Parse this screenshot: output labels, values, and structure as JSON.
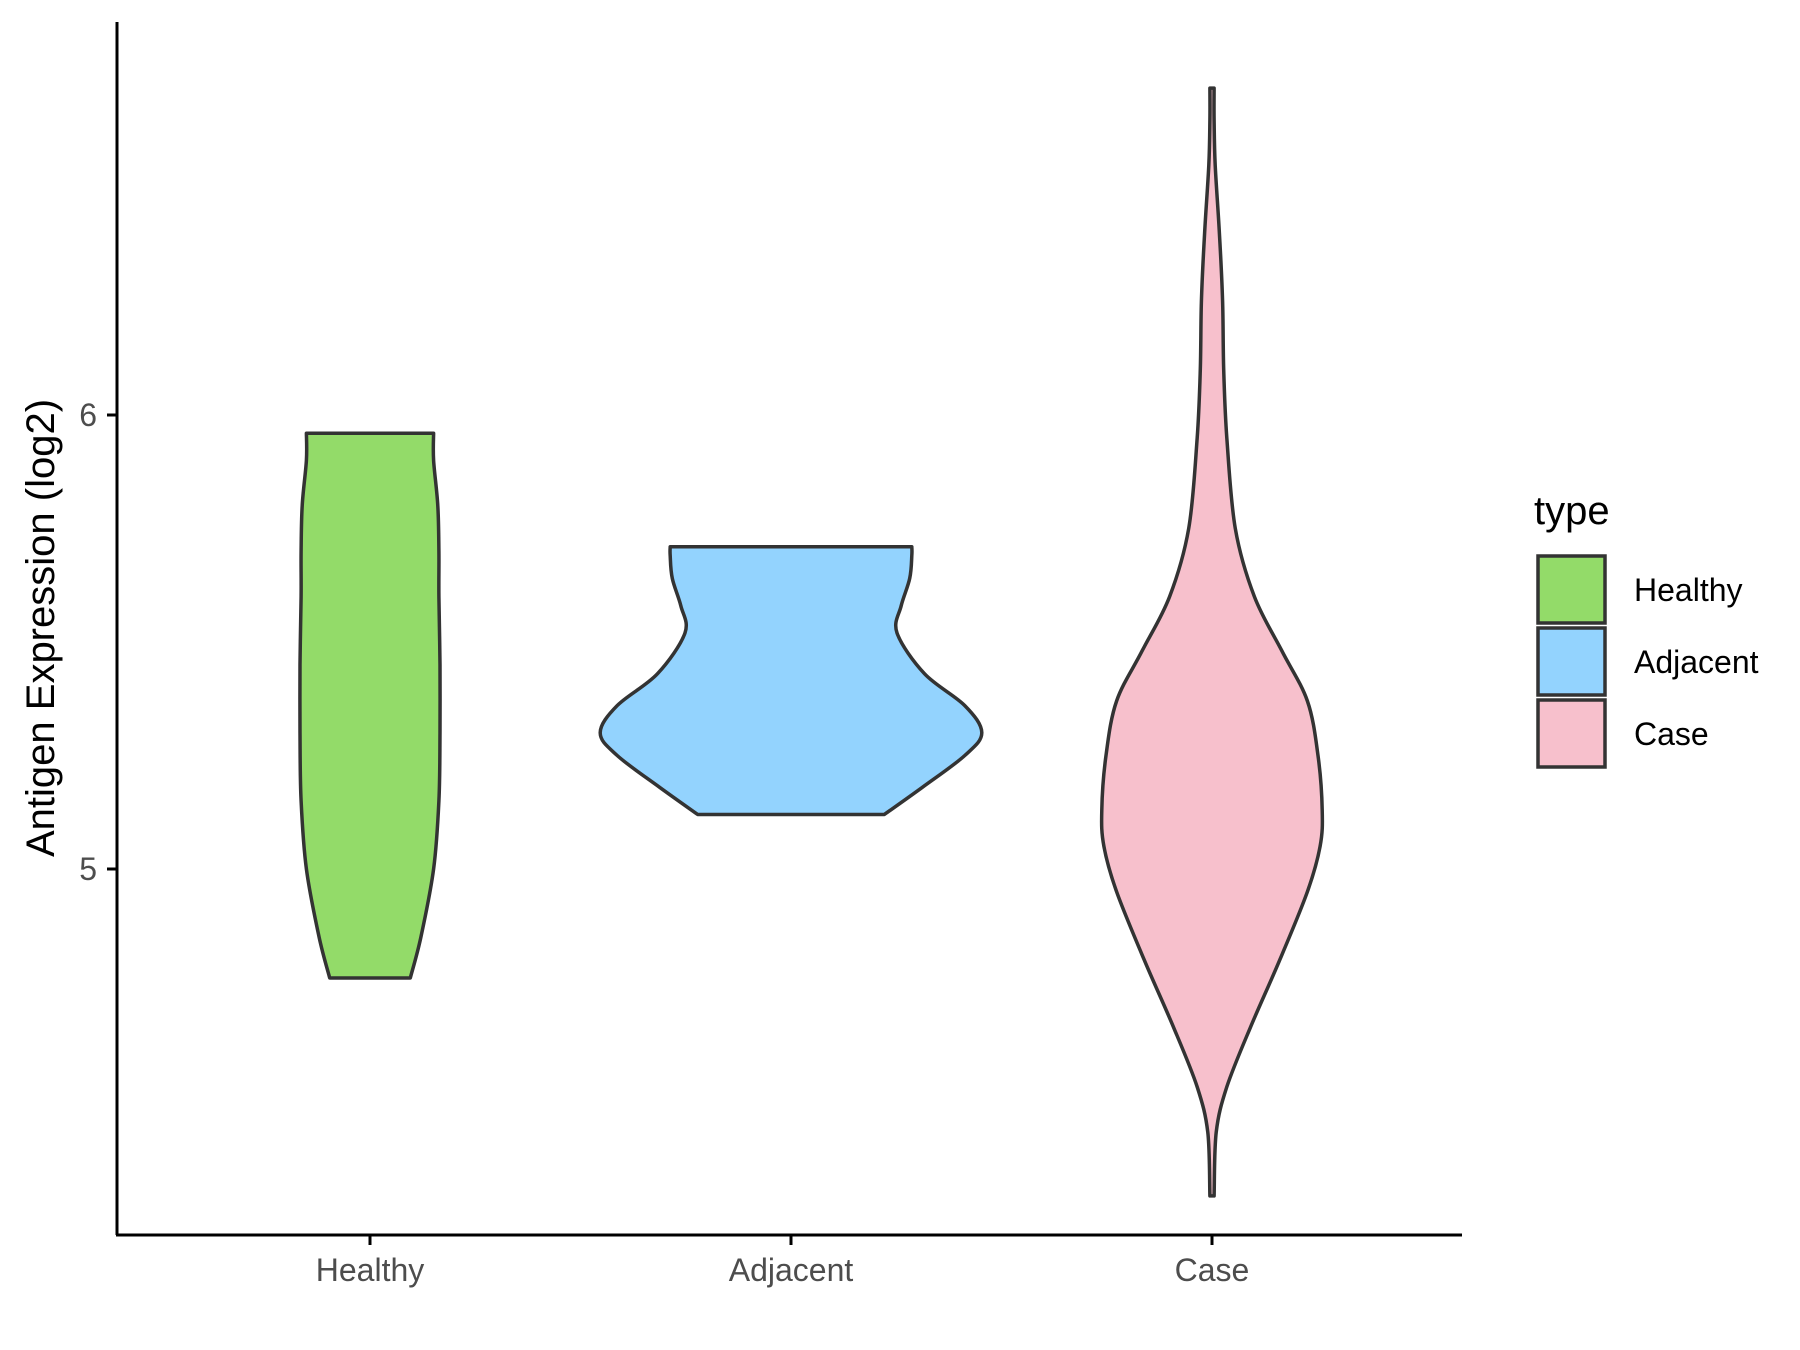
{
  "chart_data": {
    "type": "violin",
    "title": "",
    "xlabel": "",
    "ylabel": "Antigen Expression (log2)",
    "categories": [
      "Healthy",
      "Adjacent",
      "Case"
    ],
    "y_ticks": [
      "5",
      "6"
    ],
    "ylim": [
      4.2,
      6.87
    ],
    "grid": false,
    "legend": {
      "title": "type",
      "position": "right",
      "entries": [
        "Healthy",
        "Adjacent",
        "Case"
      ]
    },
    "colors": {
      "Healthy": "#93db69",
      "Adjacent": "#93d3fe",
      "Case": "#f7c0cc"
    },
    "series": [
      {
        "category": "Healthy",
        "min": 4.76,
        "max": 5.96,
        "density": [
          [
            4.76,
            0.19
          ],
          [
            4.85,
            0.24
          ],
          [
            5.0,
            0.3
          ],
          [
            5.15,
            0.325
          ],
          [
            5.3,
            0.33
          ],
          [
            5.45,
            0.33
          ],
          [
            5.6,
            0.325
          ],
          [
            5.7,
            0.325
          ],
          [
            5.8,
            0.32
          ],
          [
            5.9,
            0.3
          ],
          [
            5.96,
            0.3
          ]
        ]
      },
      {
        "category": "Adjacent",
        "min": 5.12,
        "max": 5.71,
        "density": [
          [
            5.12,
            0.44
          ],
          [
            5.18,
            0.62
          ],
          [
            5.25,
            0.82
          ],
          [
            5.3,
            0.9
          ],
          [
            5.36,
            0.82
          ],
          [
            5.43,
            0.63
          ],
          [
            5.52,
            0.5
          ],
          [
            5.58,
            0.52
          ],
          [
            5.64,
            0.56
          ],
          [
            5.69,
            0.57
          ],
          [
            5.71,
            0.57
          ]
        ]
      },
      {
        "category": "Case",
        "min": 4.28,
        "max": 6.72,
        "density": [
          [
            4.28,
            0.01
          ],
          [
            4.42,
            0.02
          ],
          [
            4.52,
            0.07
          ],
          [
            4.65,
            0.18
          ],
          [
            4.8,
            0.32
          ],
          [
            4.95,
            0.45
          ],
          [
            5.05,
            0.51
          ],
          [
            5.13,
            0.52
          ],
          [
            5.25,
            0.5
          ],
          [
            5.37,
            0.45
          ],
          [
            5.48,
            0.33
          ],
          [
            5.6,
            0.2
          ],
          [
            5.75,
            0.11
          ],
          [
            5.95,
            0.07
          ],
          [
            6.1,
            0.055
          ],
          [
            6.25,
            0.05
          ],
          [
            6.4,
            0.035
          ],
          [
            6.55,
            0.015
          ],
          [
            6.65,
            0.01
          ],
          [
            6.72,
            0.01
          ]
        ]
      }
    ]
  }
}
